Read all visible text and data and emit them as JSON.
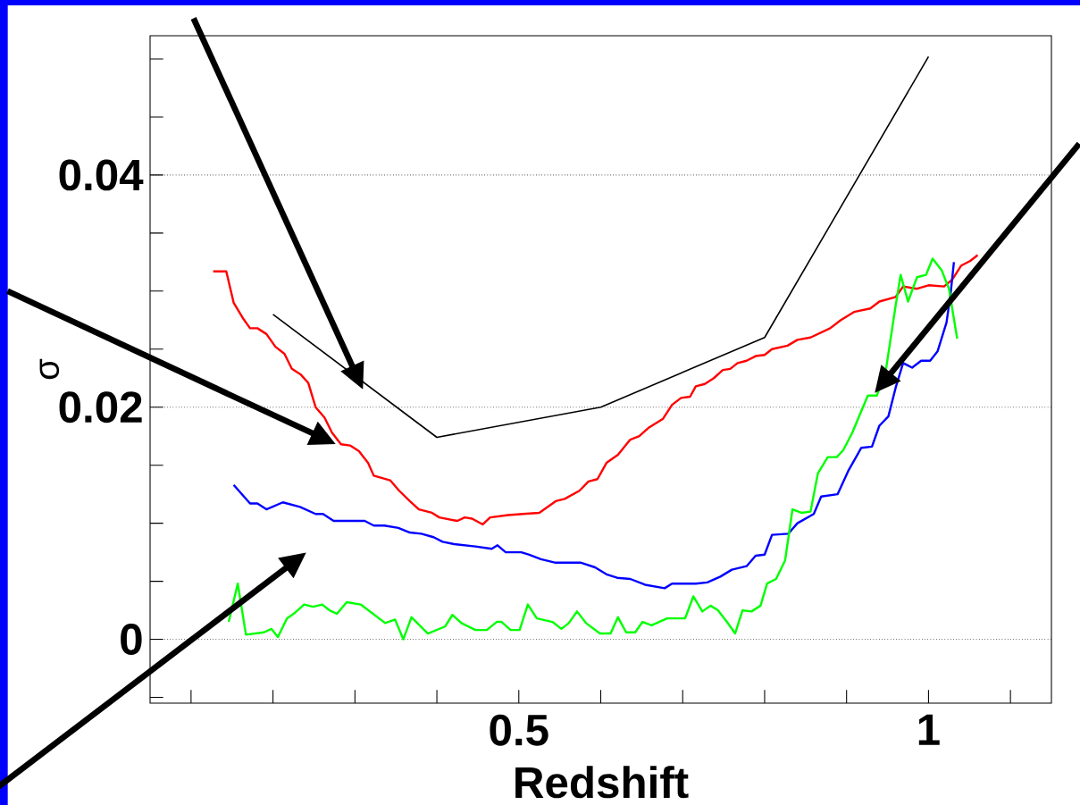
{
  "chart_data": {
    "type": "line",
    "xlabel": "Redshift",
    "ylabel": "σ",
    "xlim": [
      0.05,
      1.15
    ],
    "ylim": [
      -0.0055,
      0.052
    ],
    "xticks": [
      {
        "value": 0.1,
        "label": null
      },
      {
        "value": 0.2,
        "label": null
      },
      {
        "value": 0.3,
        "label": null
      },
      {
        "value": 0.4,
        "label": null
      },
      0.5,
      {
        "value": 0.6,
        "label": null
      },
      {
        "value": 0.7,
        "label": null
      },
      {
        "value": 0.8,
        "label": null
      },
      {
        "value": 0.9,
        "label": null
      },
      1,
      {
        "value": 1.1,
        "label": null
      }
    ],
    "yticks": [
      {
        "value": -0.005,
        "label": null
      },
      0,
      {
        "value": 0.005,
        "label": null
      },
      {
        "value": 0.01,
        "label": null
      },
      {
        "value": 0.015,
        "label": null
      },
      0.02,
      {
        "value": 0.025,
        "label": null
      },
      {
        "value": 0.03,
        "label": null
      },
      {
        "value": 0.035,
        "label": null
      },
      0.04,
      {
        "value": 0.045,
        "label": null
      },
      {
        "value": 0.05,
        "label": null
      }
    ],
    "grid": "y",
    "series": [
      {
        "color": "#000000",
        "x": [
          0.2,
          0.4,
          0.6,
          0.8,
          1.0
        ],
        "values": [
          0.028,
          0.0174,
          0.02,
          0.026,
          0.0502
        ]
      },
      {
        "color": "#ff0000",
        "x": [
          0.127,
          0.143,
          0.152,
          0.163,
          0.172,
          0.181,
          0.192,
          0.203,
          0.214,
          0.223,
          0.234,
          0.243,
          0.252,
          0.263,
          0.272,
          0.283,
          0.294,
          0.305,
          0.316,
          0.323,
          0.343,
          0.354,
          0.367,
          0.378,
          0.394,
          0.403,
          0.425,
          0.434,
          0.443,
          0.456,
          0.465,
          0.487,
          0.505,
          0.525,
          0.533,
          0.545,
          0.556,
          0.574,
          0.585,
          0.596,
          0.607,
          0.621,
          0.636,
          0.647,
          0.658,
          0.676,
          0.687,
          0.698,
          0.709,
          0.716,
          0.727,
          0.738,
          0.749,
          0.758,
          0.767,
          0.778,
          0.789,
          0.8,
          0.809,
          0.828,
          0.84,
          0.856,
          0.88,
          0.893,
          0.909,
          0.929,
          0.94,
          0.96,
          0.969,
          0.986,
          1.0,
          1.019,
          1.029,
          1.04,
          1.051,
          1.06
        ],
        "values": [
          0.0317,
          0.0317,
          0.029,
          0.0277,
          0.0268,
          0.0268,
          0.0263,
          0.0252,
          0.0246,
          0.0233,
          0.0228,
          0.0221,
          0.02,
          0.0191,
          0.0178,
          0.0168,
          0.0167,
          0.0162,
          0.0152,
          0.0141,
          0.0137,
          0.0128,
          0.0119,
          0.0112,
          0.0109,
          0.0105,
          0.0102,
          0.0105,
          0.0104,
          0.0099,
          0.0105,
          0.0107,
          0.0108,
          0.0109,
          0.0113,
          0.0119,
          0.0121,
          0.0128,
          0.0136,
          0.0138,
          0.0152,
          0.0159,
          0.0172,
          0.0175,
          0.0182,
          0.019,
          0.0202,
          0.0208,
          0.0209,
          0.0218,
          0.022,
          0.0225,
          0.0232,
          0.0233,
          0.0238,
          0.024,
          0.0244,
          0.0245,
          0.025,
          0.0253,
          0.0258,
          0.026,
          0.0268,
          0.0275,
          0.0282,
          0.0285,
          0.0291,
          0.0295,
          0.0304,
          0.0302,
          0.0305,
          0.0304,
          0.031,
          0.0322,
          0.0326,
          0.0331
        ]
      },
      {
        "color": "#0000ff",
        "x": [
          0.152,
          0.172,
          0.181,
          0.192,
          0.212,
          0.233,
          0.252,
          0.261,
          0.274,
          0.312,
          0.323,
          0.336,
          0.353,
          0.367,
          0.381,
          0.396,
          0.407,
          0.421,
          0.447,
          0.467,
          0.474,
          0.484,
          0.503,
          0.512,
          0.527,
          0.545,
          0.576,
          0.593,
          0.607,
          0.62,
          0.636,
          0.654,
          0.678,
          0.687,
          0.716,
          0.73,
          0.746,
          0.76,
          0.778,
          0.789,
          0.8,
          0.809,
          0.829,
          0.84,
          0.86,
          0.869,
          0.889,
          0.902,
          0.918,
          0.931,
          0.94,
          0.951,
          0.96,
          0.969,
          0.98,
          0.991,
          1.002,
          1.011,
          1.022,
          1.027,
          1.031
        ],
        "values": [
          0.0133,
          0.0117,
          0.0117,
          0.0112,
          0.0118,
          0.0114,
          0.0108,
          0.0108,
          0.0102,
          0.0102,
          0.0098,
          0.0098,
          0.0096,
          0.0092,
          0.0091,
          0.0088,
          0.0084,
          0.0082,
          0.008,
          0.0078,
          0.0081,
          0.0075,
          0.0075,
          0.0073,
          0.0069,
          0.0066,
          0.0066,
          0.0062,
          0.0056,
          0.0053,
          0.0052,
          0.0047,
          0.0044,
          0.0048,
          0.0048,
          0.0049,
          0.0054,
          0.006,
          0.0063,
          0.0072,
          0.0073,
          0.009,
          0.0091,
          0.01,
          0.0108,
          0.0123,
          0.0125,
          0.0145,
          0.0165,
          0.0166,
          0.0184,
          0.0192,
          0.0217,
          0.0238,
          0.0234,
          0.024,
          0.024,
          0.0248,
          0.0273,
          0.0298,
          0.0325
        ]
      },
      {
        "color": "#00ff00",
        "x": [
          0.146,
          0.157,
          0.167,
          0.189,
          0.198,
          0.206,
          0.217,
          0.227,
          0.238,
          0.249,
          0.26,
          0.269,
          0.278,
          0.29,
          0.307,
          0.337,
          0.349,
          0.359,
          0.369,
          0.389,
          0.41,
          0.419,
          0.43,
          0.447,
          0.461,
          0.473,
          0.479,
          0.49,
          0.501,
          0.511,
          0.522,
          0.541,
          0.552,
          0.561,
          0.571,
          0.582,
          0.599,
          0.612,
          0.621,
          0.631,
          0.642,
          0.651,
          0.662,
          0.681,
          0.703,
          0.713,
          0.724,
          0.734,
          0.743,
          0.754,
          0.764,
          0.773,
          0.784,
          0.795,
          0.803,
          0.814,
          0.825,
          0.834,
          0.845,
          0.856,
          0.865,
          0.877,
          0.888,
          0.896,
          0.907,
          0.92,
          0.926,
          0.937,
          0.948,
          0.96,
          0.966,
          0.975,
          0.986,
          0.997,
          1.005,
          1.016,
          1.025,
          1.035
        ],
        "values": [
          0.0015,
          0.0048,
          0.0004,
          0.0006,
          0.0009,
          0.0002,
          0.0018,
          0.0023,
          0.003,
          0.0028,
          0.003,
          0.0025,
          0.0022,
          0.0032,
          0.003,
          0.0014,
          0.0017,
          0.0,
          0.0019,
          0.0005,
          0.0011,
          0.0021,
          0.0014,
          0.0008,
          0.0008,
          0.0015,
          0.0015,
          0.0008,
          0.0008,
          0.003,
          0.0018,
          0.0015,
          0.0009,
          0.0014,
          0.0024,
          0.0014,
          0.0005,
          0.0005,
          0.0019,
          0.0006,
          0.0006,
          0.0015,
          0.0012,
          0.0018,
          0.0018,
          0.0037,
          0.0024,
          0.0029,
          0.0025,
          0.0015,
          0.0005,
          0.0025,
          0.0024,
          0.0029,
          0.0048,
          0.0052,
          0.0068,
          0.0112,
          0.0109,
          0.011,
          0.0143,
          0.0157,
          0.0157,
          0.0163,
          0.0178,
          0.02,
          0.021,
          0.021,
          0.0232,
          0.0288,
          0.0314,
          0.0291,
          0.0312,
          0.0314,
          0.0328,
          0.0318,
          0.0302,
          0.0259
        ]
      }
    ]
  }
}
